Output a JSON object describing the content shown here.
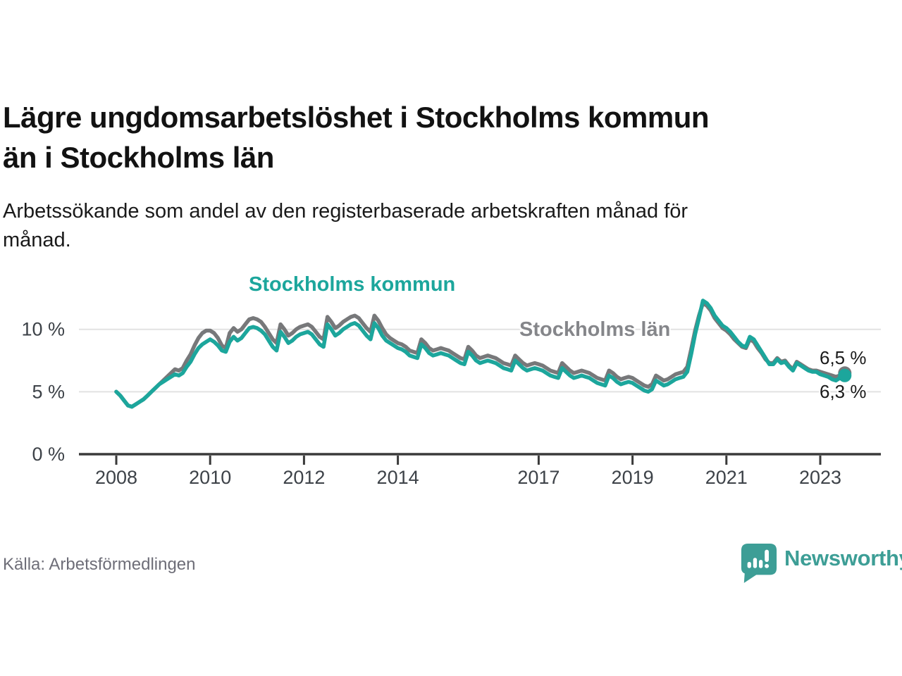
{
  "title": {
    "line1": "Lägre ungdomsarbetslöshet i Stockholms kommun",
    "line2": "än i Stockholms län"
  },
  "subtitle": "Arbetssökande som andel av den registerbaserade arbetskraften månad för månad.",
  "source": "Källa: Arbetsförmedlingen",
  "brand": {
    "name": "Newsworthy",
    "icon": "newsworthy-speech-bubble-bar-chart-icon",
    "color": "#3d9e96"
  },
  "series_labels": {
    "kommun": "Stockholms kommun",
    "lan": "Stockholms län"
  },
  "annotations": {
    "lan_value": "6,5 %",
    "kommun_value": "6,3 %"
  },
  "colors": {
    "kommun_line": "#1ca69c",
    "lan_line": "#77787a",
    "lan_label_text": "#85868a",
    "grid": "#e2e2e2",
    "axis": "#3a3a3a",
    "tick_text": "#3d4248"
  },
  "chart_data": {
    "type": "line",
    "unit": "%",
    "frequency": "monthly",
    "x_start": "2008-01",
    "x_end": "2023-07",
    "x_tick_years": [
      2008,
      2010,
      2012,
      2014,
      2017,
      2019,
      2021,
      2023
    ],
    "y_ticks": [
      "0 %",
      "5 %",
      "10 %"
    ],
    "y_tick_values": [
      0,
      5,
      10
    ],
    "ylim": [
      0,
      14.3
    ],
    "grid": "horizontal",
    "legend_position": "inline-labels",
    "series": [
      {
        "name": "Stockholms län",
        "color": "#77787a",
        "end_dot": true,
        "last_value_label": "6,5 %",
        "values": [
          5.0,
          4.7,
          4.3,
          3.9,
          3.8,
          4.0,
          4.2,
          4.4,
          4.7,
          5.0,
          5.3,
          5.6,
          5.9,
          6.2,
          6.5,
          6.8,
          6.7,
          6.9,
          7.5,
          8.0,
          8.7,
          9.3,
          9.7,
          9.9,
          9.9,
          9.7,
          9.3,
          8.7,
          8.5,
          9.7,
          10.1,
          9.8,
          10.0,
          10.4,
          10.8,
          10.9,
          10.8,
          10.6,
          10.2,
          9.7,
          9.2,
          8.9,
          10.4,
          10.0,
          9.5,
          9.7,
          10.0,
          10.2,
          10.3,
          10.4,
          10.2,
          9.8,
          9.4,
          9.2,
          11.0,
          10.6,
          10.1,
          10.3,
          10.6,
          10.8,
          11.0,
          11.1,
          10.9,
          10.5,
          10.1,
          9.8,
          11.1,
          10.7,
          10.1,
          9.6,
          9.3,
          9.1,
          8.9,
          8.8,
          8.6,
          8.3,
          8.2,
          8.1,
          9.2,
          8.9,
          8.5,
          8.3,
          8.4,
          8.5,
          8.4,
          8.3,
          8.1,
          7.9,
          7.7,
          7.6,
          8.6,
          8.3,
          7.9,
          7.7,
          7.8,
          7.9,
          7.8,
          7.7,
          7.5,
          7.3,
          7.2,
          7.1,
          7.9,
          7.6,
          7.3,
          7.1,
          7.2,
          7.3,
          7.2,
          7.1,
          6.9,
          6.7,
          6.6,
          6.5,
          7.3,
          7.0,
          6.7,
          6.5,
          6.6,
          6.7,
          6.6,
          6.5,
          6.3,
          6.1,
          6.0,
          5.9,
          6.7,
          6.5,
          6.2,
          6.0,
          6.1,
          6.2,
          6.1,
          5.9,
          5.7,
          5.5,
          5.4,
          5.6,
          6.3,
          6.1,
          5.9,
          6.0,
          6.2,
          6.4,
          6.5,
          6.6,
          7.0,
          8.4,
          9.9,
          11.1,
          12.1,
          11.9,
          11.5,
          10.9,
          10.5,
          10.1,
          9.9,
          9.6,
          9.2,
          8.9,
          8.6,
          8.5,
          9.2,
          9.0,
          8.5,
          8.1,
          7.6,
          7.3,
          7.3,
          7.7,
          7.4,
          7.5,
          7.1,
          6.8,
          7.4,
          7.2,
          7.0,
          6.8,
          6.7,
          6.7,
          6.6,
          6.5,
          6.4,
          6.3,
          6.2,
          6.3,
          6.5
        ]
      },
      {
        "name": "Stockholms kommun",
        "color": "#1ca69c",
        "end_dot": true,
        "last_value_label": "6,3 %",
        "values": [
          5.0,
          4.7,
          4.3,
          3.9,
          3.8,
          4.0,
          4.2,
          4.4,
          4.7,
          5.0,
          5.3,
          5.6,
          5.8,
          6.0,
          6.2,
          6.4,
          6.3,
          6.5,
          7.0,
          7.4,
          8.0,
          8.5,
          8.8,
          9.0,
          9.2,
          9.0,
          8.7,
          8.3,
          8.2,
          9.0,
          9.4,
          9.1,
          9.3,
          9.7,
          10.1,
          10.2,
          10.1,
          9.9,
          9.6,
          9.1,
          8.6,
          8.3,
          9.8,
          9.4,
          8.9,
          9.1,
          9.4,
          9.6,
          9.7,
          9.8,
          9.6,
          9.2,
          8.8,
          8.6,
          10.4,
          10.0,
          9.5,
          9.7,
          10.0,
          10.2,
          10.4,
          10.5,
          10.3,
          9.9,
          9.5,
          9.2,
          10.5,
          10.1,
          9.5,
          9.1,
          8.9,
          8.7,
          8.5,
          8.4,
          8.2,
          7.9,
          7.8,
          7.7,
          8.8,
          8.5,
          8.1,
          7.9,
          8.0,
          8.1,
          8.0,
          7.9,
          7.7,
          7.5,
          7.3,
          7.2,
          8.2,
          7.9,
          7.5,
          7.3,
          7.4,
          7.5,
          7.4,
          7.3,
          7.1,
          6.9,
          6.8,
          6.7,
          7.5,
          7.2,
          6.9,
          6.7,
          6.8,
          6.9,
          6.8,
          6.7,
          6.5,
          6.3,
          6.2,
          6.1,
          6.9,
          6.6,
          6.3,
          6.1,
          6.2,
          6.3,
          6.2,
          6.1,
          5.9,
          5.7,
          5.6,
          5.5,
          6.3,
          6.1,
          5.8,
          5.6,
          5.7,
          5.8,
          5.7,
          5.5,
          5.3,
          5.1,
          5.0,
          5.2,
          5.9,
          5.7,
          5.5,
          5.6,
          5.8,
          6.0,
          6.1,
          6.2,
          6.6,
          8.0,
          9.6,
          10.9,
          12.3,
          12.1,
          11.7,
          11.1,
          10.7,
          10.3,
          10.1,
          9.8,
          9.4,
          9.0,
          8.7,
          8.6,
          9.4,
          9.2,
          8.7,
          8.2,
          7.7,
          7.2,
          7.2,
          7.6,
          7.3,
          7.4,
          7.0,
          6.7,
          7.3,
          7.1,
          6.9,
          6.7,
          6.6,
          6.6,
          6.4,
          6.3,
          6.2,
          6.0,
          5.9,
          6.1,
          6.3
        ]
      }
    ]
  }
}
